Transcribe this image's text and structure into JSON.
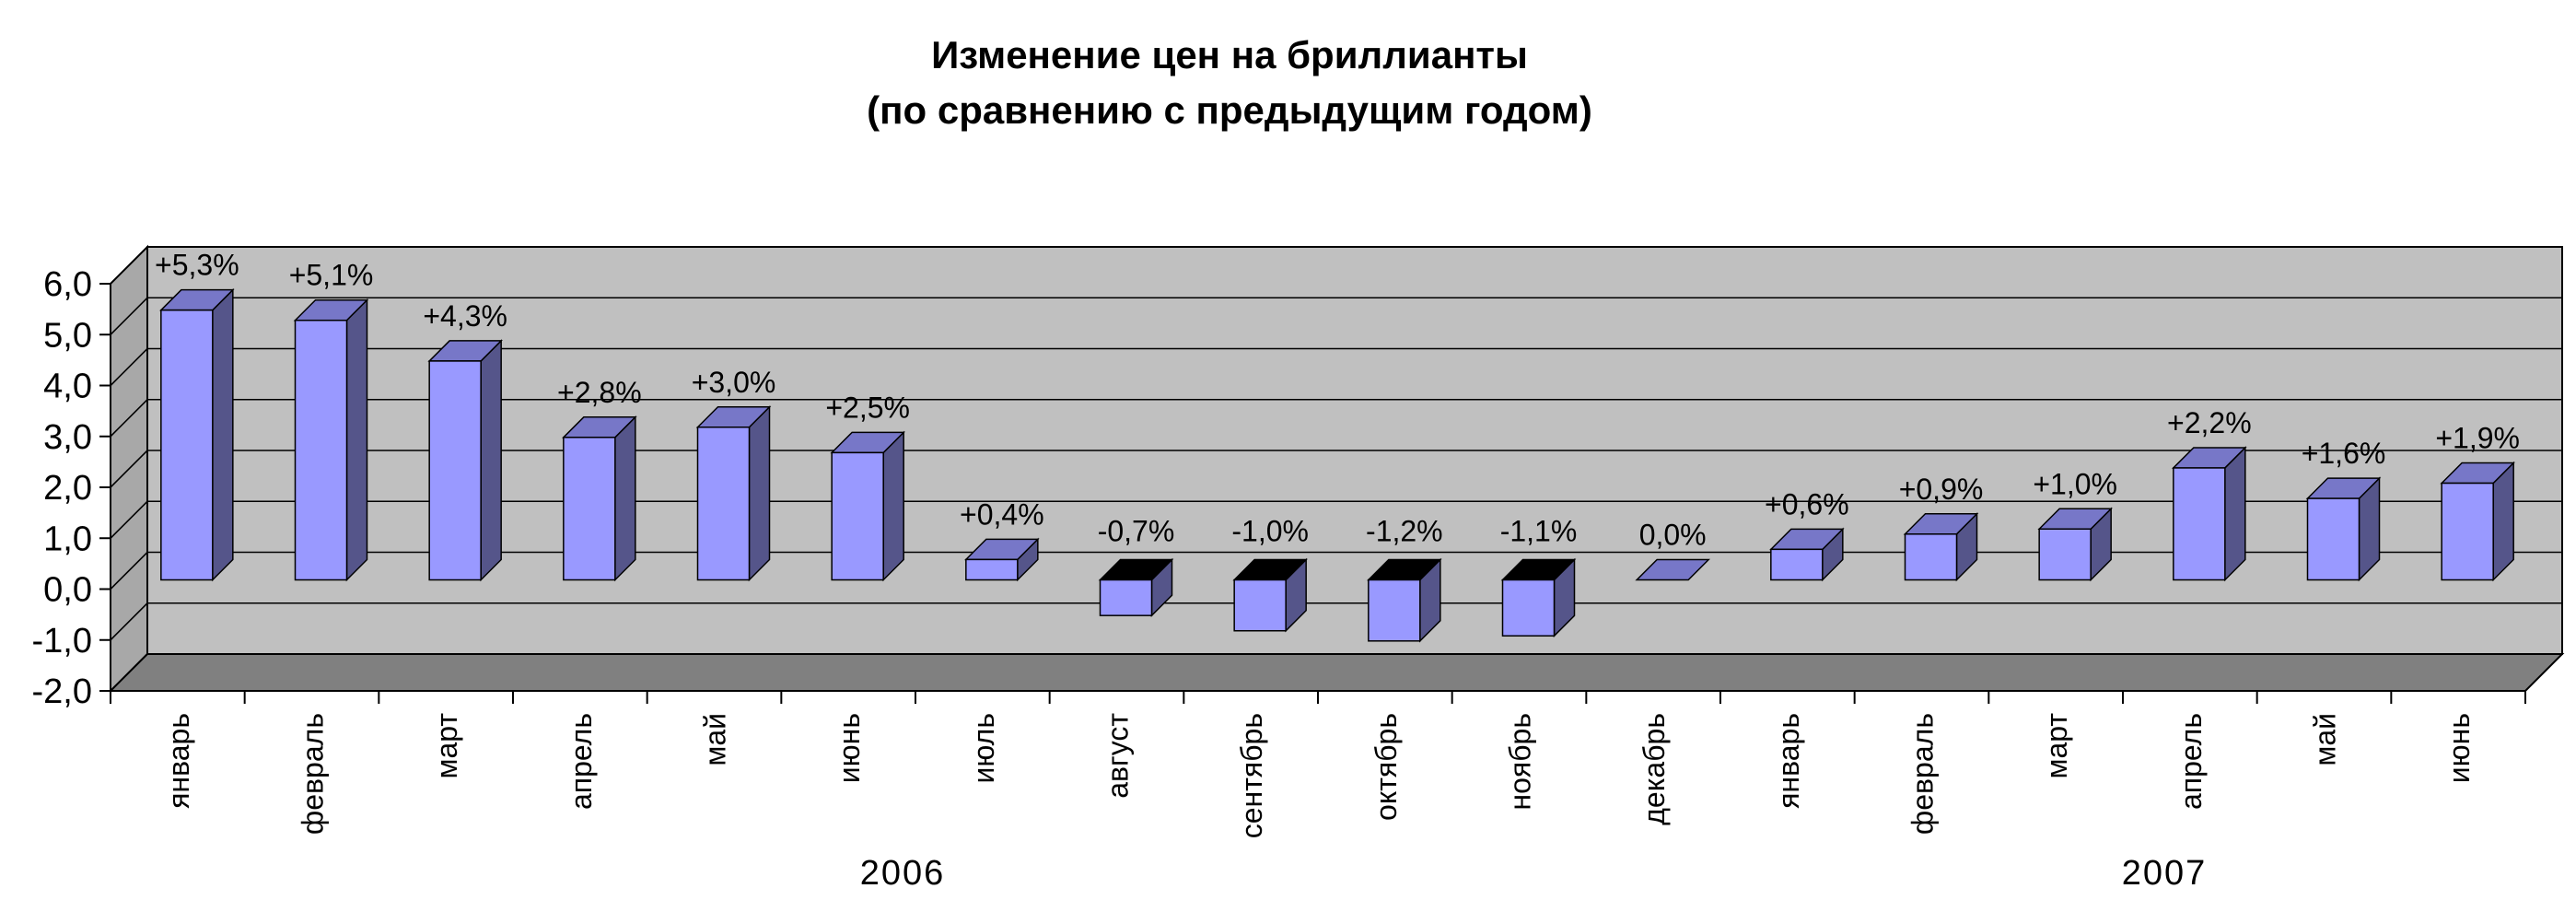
{
  "chart_data": {
    "type": "bar",
    "title": "Изменение цен на бриллианты",
    "subtitle": "(по сравнению с предыдущим годом)",
    "categories": [
      "январь",
      "февраль",
      "март",
      "апрель",
      "май",
      "июнь",
      "июль",
      "август",
      "сентябрь",
      "октябрь",
      "ноябрь",
      "декабрь",
      "январь",
      "февраль",
      "март",
      "апрель",
      "май",
      "июнь"
    ],
    "values": [
      5.3,
      5.1,
      4.3,
      2.8,
      3.0,
      2.5,
      0.4,
      -0.7,
      -1.0,
      -1.2,
      -1.1,
      0.0,
      0.6,
      0.9,
      1.0,
      2.2,
      1.6,
      1.9
    ],
    "data_labels": [
      "+5,3%",
      "+5,1%",
      "+4,3%",
      "+2,8%",
      "+3,0%",
      "+2,5%",
      "+0,4%",
      "-0,7%",
      "-1,0%",
      "-1,2%",
      "-1,1%",
      "0,0%",
      "+0,6%",
      "+0,9%",
      "+1,0%",
      "+2,2%",
      "+1,6%",
      "+1,9%"
    ],
    "y_ticks": [
      "-2,0",
      "-1,0",
      "0,0",
      "1,0",
      "2,0",
      "3,0",
      "4,0",
      "5,0",
      "6,0"
    ],
    "ylim": [
      -2,
      6
    ],
    "year_groups": [
      {
        "label": "2006",
        "start": 0,
        "end": 11
      },
      {
        "label": "2007",
        "start": 12,
        "end": 17
      }
    ],
    "grid": true,
    "colors": {
      "bar_front": "#9999ff",
      "bar_side": "#55558a",
      "bar_top": "#7777c8",
      "wall": "#c0c0c0",
      "floor": "#808080",
      "negative_top": "#000000"
    }
  }
}
